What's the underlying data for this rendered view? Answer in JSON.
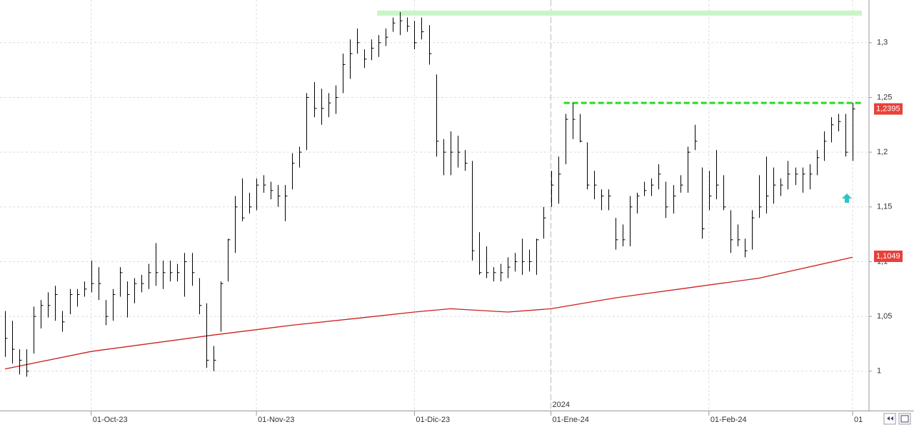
{
  "chart_data": {
    "type": "ohlc",
    "categories": [
      null,
      null,
      null,
      null,
      null,
      null,
      null,
      null,
      null,
      null,
      null,
      null,
      "01-Oct-23",
      null,
      null,
      null,
      null,
      null,
      null,
      null,
      null,
      null,
      null,
      null,
      null,
      null,
      null,
      null,
      null,
      null,
      null,
      null,
      null,
      null,
      null,
      "01-Nov-23",
      null,
      null,
      null,
      null,
      null,
      null,
      null,
      null,
      null,
      null,
      null,
      null,
      null,
      null,
      null,
      null,
      null,
      null,
      null,
      null,
      null,
      "01-Dic-23",
      null,
      null,
      null,
      null,
      null,
      null,
      null,
      null,
      null,
      null,
      null,
      null,
      null,
      null,
      null,
      null,
      null,
      null,
      "01-Ene-24",
      null,
      null,
      null,
      null,
      null,
      null,
      null,
      null,
      null,
      null,
      null,
      null,
      null,
      null,
      null,
      null,
      null,
      null,
      null,
      null,
      null,
      "01-Feb-24",
      null,
      null,
      null,
      null,
      null,
      null,
      null,
      null,
      null,
      null,
      null,
      null,
      null,
      null,
      null,
      null,
      null,
      null,
      null,
      "01"
    ],
    "year_label": {
      "text": "2024",
      "at": 76
    },
    "high": [
      1.055,
      1.046,
      1.02,
      1.02,
      1.059,
      1.065,
      1.072,
      1.078,
      1.055,
      1.075,
      1.075,
      1.082,
      1.101,
      1.095,
      1.065,
      1.075,
      1.095,
      1.082,
      1.085,
      1.088,
      1.098,
      1.117,
      1.101,
      1.101,
      1.098,
      1.108,
      1.108,
      1.085,
      1.062,
      1.023,
      1.082,
      1.121,
      1.16,
      1.176,
      1.163,
      1.176,
      1.179,
      1.173,
      1.17,
      1.17,
      1.199,
      1.205,
      1.254,
      1.264,
      1.258,
      1.254,
      1.261,
      1.29,
      1.303,
      1.313,
      1.294,
      1.303,
      1.307,
      1.313,
      1.323,
      1.328,
      1.323,
      1.32,
      1.323,
      1.316,
      1.271,
      1.212,
      1.219,
      1.215,
      1.202,
      1.192,
      1.127,
      1.114,
      1.095,
      1.098,
      1.104,
      1.108,
      1.121,
      1.111,
      1.121,
      1.15,
      1.183,
      1.196,
      1.235,
      1.245,
      1.235,
      1.209,
      1.183,
      1.166,
      1.166,
      1.14,
      1.134,
      1.16,
      1.163,
      1.173,
      1.176,
      1.189,
      1.173,
      1.17,
      1.179,
      1.205,
      1.225,
      1.186,
      1.183,
      1.202,
      1.179,
      1.147,
      1.134,
      1.121,
      1.147,
      1.179,
      1.196,
      1.186,
      1.176,
      1.192,
      1.186,
      1.186,
      1.189,
      1.202,
      1.219,
      1.232,
      1.235,
      1.235,
      1.245
    ],
    "low": [
      1.013,
      1.007,
      0.997,
      0.995,
      1.016,
      1.039,
      1.049,
      1.046,
      1.036,
      1.052,
      1.059,
      1.068,
      1.072,
      1.065,
      1.042,
      1.046,
      1.068,
      1.049,
      1.062,
      1.072,
      1.075,
      1.078,
      1.075,
      1.082,
      1.082,
      1.068,
      1.078,
      1.052,
      1.003,
      1.0,
      1.036,
      1.082,
      1.108,
      1.137,
      1.144,
      1.147,
      1.163,
      1.157,
      1.15,
      1.137,
      1.166,
      1.186,
      1.202,
      1.232,
      1.225,
      1.232,
      1.235,
      1.254,
      1.267,
      1.29,
      1.277,
      1.284,
      1.287,
      1.297,
      1.31,
      1.307,
      1.31,
      1.294,
      1.303,
      1.28,
      1.196,
      1.179,
      1.179,
      1.186,
      1.183,
      1.101,
      1.088,
      1.085,
      1.082,
      1.082,
      1.085,
      1.091,
      1.088,
      1.091,
      1.088,
      1.121,
      1.15,
      1.153,
      1.189,
      1.212,
      1.209,
      1.166,
      1.157,
      1.147,
      1.147,
      1.111,
      1.114,
      1.114,
      1.144,
      1.16,
      1.16,
      1.166,
      1.14,
      1.144,
      1.163,
      1.163,
      1.202,
      1.121,
      1.147,
      1.157,
      1.147,
      1.108,
      1.114,
      1.104,
      1.111,
      1.14,
      1.144,
      1.153,
      1.16,
      1.166,
      1.17,
      1.163,
      1.166,
      1.179,
      1.192,
      1.209,
      1.219,
      1.196,
      1.192
    ],
    "close": [
      1.03,
      1.02,
      1.01,
      1.0,
      1.05,
      1.06,
      1.06,
      1.07,
      1.045,
      1.07,
      1.07,
      1.075,
      1.08,
      1.08,
      1.05,
      1.07,
      1.09,
      1.07,
      1.08,
      1.08,
      1.09,
      1.09,
      1.09,
      1.09,
      1.09,
      1.1,
      1.09,
      1.06,
      1.01,
      1.01,
      1.08,
      1.12,
      1.15,
      1.14,
      1.15,
      1.17,
      1.17,
      1.165,
      1.16,
      1.16,
      1.19,
      1.2,
      1.25,
      1.24,
      1.24,
      1.245,
      1.25,
      1.28,
      1.29,
      1.3,
      1.285,
      1.295,
      1.3,
      1.305,
      1.318,
      1.32,
      1.315,
      1.3,
      1.31,
      1.29,
      1.21,
      1.2,
      1.2,
      1.2,
      1.19,
      1.11,
      1.09,
      1.09,
      1.09,
      1.09,
      1.095,
      1.1,
      1.1,
      1.1,
      1.12,
      1.14,
      1.17,
      1.18,
      1.23,
      1.23,
      1.21,
      1.17,
      1.17,
      1.16,
      1.16,
      1.12,
      1.12,
      1.15,
      1.16,
      1.165,
      1.17,
      1.18,
      1.15,
      1.16,
      1.17,
      1.2,
      1.21,
      1.13,
      1.16,
      1.17,
      1.15,
      1.12,
      1.12,
      1.11,
      1.14,
      1.15,
      1.16,
      1.17,
      1.17,
      1.18,
      1.18,
      1.18,
      1.18,
      1.195,
      1.21,
      1.225,
      1.228,
      1.2,
      1.2395
    ],
    "moving_average": {
      "color": "#cc1f1f",
      "x": [
        0,
        12,
        29,
        40,
        50,
        57,
        62,
        70,
        76,
        85,
        95,
        105,
        118
      ],
      "values": [
        1.002,
        1.018,
        1.033,
        1.042,
        1.049,
        1.054,
        1.057,
        1.054,
        1.057,
        1.067,
        1.076,
        1.085,
        1.104
      ]
    },
    "levels": [
      {
        "value": 1.327,
        "from": 53,
        "color": "#c8f5c8",
        "style": "solid"
      },
      {
        "value": 1.245,
        "from": 79,
        "color": "#22dd22",
        "style": "dashed"
      }
    ],
    "price_labels": [
      {
        "value": 1.2395,
        "label": "1,2395",
        "color": "#e8403a"
      },
      {
        "value": 1.1049,
        "label": "1,1049",
        "color": "#e8403a"
      }
    ],
    "ylim": [
      0.964,
      1.339
    ],
    "yticks": [
      1,
      {
        "value": 1.05,
        "label": "1,05"
      },
      {
        "value": 1.1,
        "label": "1,1"
      },
      {
        "value": 1.15,
        "label": "1,15"
      },
      {
        "value": 1.2,
        "label": "1,2"
      },
      {
        "value": 1.25,
        "label": "1,25"
      },
      {
        "value": 1.3,
        "label": "1,3"
      }
    ],
    "grid": true
  }
}
